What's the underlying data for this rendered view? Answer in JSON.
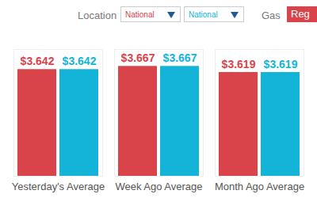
{
  "chart_data": {
    "type": "bar",
    "categories": [
      "Yesterday's Average",
      "Week Ago Average",
      "Month Ago Average"
    ],
    "series": [
      {
        "name": "National",
        "color": "#d9444b",
        "values": [
          3.642,
          3.667,
          3.619
        ],
        "value_labels": [
          "$3.642",
          "$3.667",
          "$3.619"
        ]
      },
      {
        "name": "National",
        "color": "#13b4d8",
        "values": [
          3.642,
          3.667,
          3.619
        ],
        "value_labels": [
          "$3.642",
          "$3.667",
          "$3.619"
        ]
      }
    ],
    "ylim": [
      2.8,
      3.8
    ],
    "data_labels": true,
    "tick_labels": "x",
    "legend": "top",
    "annotations": [
      "Location",
      "Gas",
      "Reg"
    ]
  }
}
